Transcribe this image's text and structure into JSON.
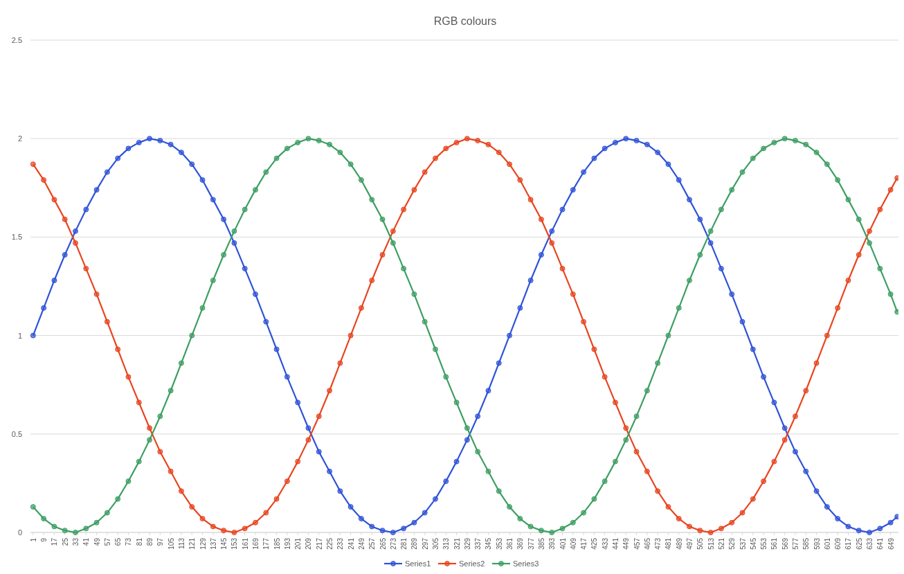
{
  "chart_data": {
    "type": "line",
    "title": "RGB colours",
    "x": [
      1,
      9,
      17,
      25,
      33,
      41,
      49,
      57,
      65,
      73,
      81,
      89,
      97,
      105,
      113,
      121,
      129,
      137,
      145,
      153,
      161,
      169,
      177,
      185,
      193,
      201,
      209,
      217,
      225,
      233,
      241,
      249,
      257,
      265,
      273,
      281,
      289,
      297,
      305,
      313,
      321,
      329,
      337,
      345,
      353,
      361,
      369,
      377,
      385,
      393,
      401,
      409,
      417,
      425,
      433,
      441,
      449,
      457,
      465,
      473,
      481,
      489,
      497,
      505,
      513,
      521,
      529,
      537,
      545,
      553,
      561,
      569,
      577,
      585,
      593,
      601,
      609,
      617,
      625,
      633,
      641,
      649,
      654
    ],
    "xlim": [
      -1,
      656
    ],
    "xticks": [
      1,
      9,
      17,
      25,
      33,
      41,
      49,
      57,
      65,
      73,
      81,
      89,
      97,
      105,
      113,
      121,
      129,
      137,
      145,
      153,
      161,
      169,
      177,
      185,
      193,
      201,
      209,
      217,
      225,
      233,
      241,
      249,
      257,
      265,
      273,
      281,
      289,
      297,
      305,
      313,
      321,
      329,
      337,
      345,
      353,
      361,
      369,
      377,
      385,
      393,
      401,
      409,
      417,
      425,
      433,
      441,
      449,
      457,
      465,
      473,
      481,
      489,
      497,
      505,
      513,
      521,
      529,
      537,
      545,
      553,
      561,
      569,
      577,
      585,
      593,
      601,
      609,
      617,
      625,
      633,
      641,
      649
    ],
    "ylim": [
      0,
      2.5
    ],
    "yticks": [
      0,
      0.5,
      1,
      1.5,
      2,
      2.5
    ],
    "grid": "y",
    "legend": "bottom",
    "marker": "circle",
    "series": [
      {
        "name": "Series1",
        "color": "#2f52d8",
        "values": [
          1.0,
          1.14,
          1.28,
          1.41,
          1.53,
          1.64,
          1.74,
          1.83,
          1.9,
          1.95,
          1.98,
          2.0,
          1.99,
          1.97,
          1.93,
          1.87,
          1.79,
          1.69,
          1.59,
          1.47,
          1.34,
          1.21,
          1.07,
          0.93,
          0.79,
          0.66,
          0.53,
          0.41,
          0.31,
          0.21,
          0.13,
          0.07,
          0.03,
          0.01,
          0.0,
          0.02,
          0.05,
          0.1,
          0.17,
          0.26,
          0.36,
          0.47,
          0.59,
          0.72,
          0.86,
          1.0,
          1.14,
          1.28,
          1.41,
          1.53,
          1.64,
          1.74,
          1.83,
          1.9,
          1.95,
          1.98,
          2.0,
          1.99,
          1.97,
          1.93,
          1.87,
          1.79,
          1.69,
          1.59,
          1.47,
          1.34,
          1.21,
          1.07,
          0.93,
          0.79,
          0.66,
          0.53,
          0.41,
          0.31,
          0.21,
          0.13,
          0.07,
          0.03,
          0.01,
          0.0,
          0.02,
          0.05,
          0.08
        ]
      },
      {
        "name": "Series2",
        "color": "#e8441f",
        "values": [
          1.87,
          1.79,
          1.69,
          1.59,
          1.47,
          1.34,
          1.21,
          1.07,
          0.93,
          0.79,
          0.66,
          0.53,
          0.41,
          0.31,
          0.21,
          0.13,
          0.07,
          0.03,
          0.01,
          0.0,
          0.02,
          0.05,
          0.1,
          0.17,
          0.26,
          0.36,
          0.47,
          0.59,
          0.72,
          0.86,
          1.0,
          1.14,
          1.28,
          1.41,
          1.53,
          1.64,
          1.74,
          1.83,
          1.9,
          1.95,
          1.98,
          2.0,
          1.99,
          1.97,
          1.93,
          1.87,
          1.79,
          1.69,
          1.59,
          1.47,
          1.34,
          1.21,
          1.07,
          0.93,
          0.79,
          0.66,
          0.53,
          0.41,
          0.31,
          0.21,
          0.13,
          0.07,
          0.03,
          0.01,
          0.0,
          0.02,
          0.05,
          0.1,
          0.17,
          0.26,
          0.36,
          0.47,
          0.59,
          0.72,
          0.86,
          1.0,
          1.14,
          1.28,
          1.41,
          1.53,
          1.64,
          1.74,
          1.8
        ]
      },
      {
        "name": "Series3",
        "color": "#3c9e62",
        "values": [
          0.13,
          0.07,
          0.03,
          0.01,
          0.0,
          0.02,
          0.05,
          0.1,
          0.17,
          0.26,
          0.36,
          0.47,
          0.59,
          0.72,
          0.86,
          1.0,
          1.14,
          1.28,
          1.41,
          1.53,
          1.64,
          1.74,
          1.83,
          1.9,
          1.95,
          1.98,
          2.0,
          1.99,
          1.97,
          1.93,
          1.87,
          1.79,
          1.69,
          1.59,
          1.47,
          1.34,
          1.21,
          1.07,
          0.93,
          0.79,
          0.66,
          0.53,
          0.41,
          0.31,
          0.21,
          0.13,
          0.07,
          0.03,
          0.01,
          0.0,
          0.02,
          0.05,
          0.1,
          0.17,
          0.26,
          0.36,
          0.47,
          0.59,
          0.72,
          0.86,
          1.0,
          1.14,
          1.28,
          1.41,
          1.53,
          1.64,
          1.74,
          1.83,
          1.9,
          1.95,
          1.98,
          2.0,
          1.99,
          1.97,
          1.93,
          1.87,
          1.79,
          1.69,
          1.59,
          1.47,
          1.34,
          1.21,
          1.12
        ]
      }
    ]
  }
}
